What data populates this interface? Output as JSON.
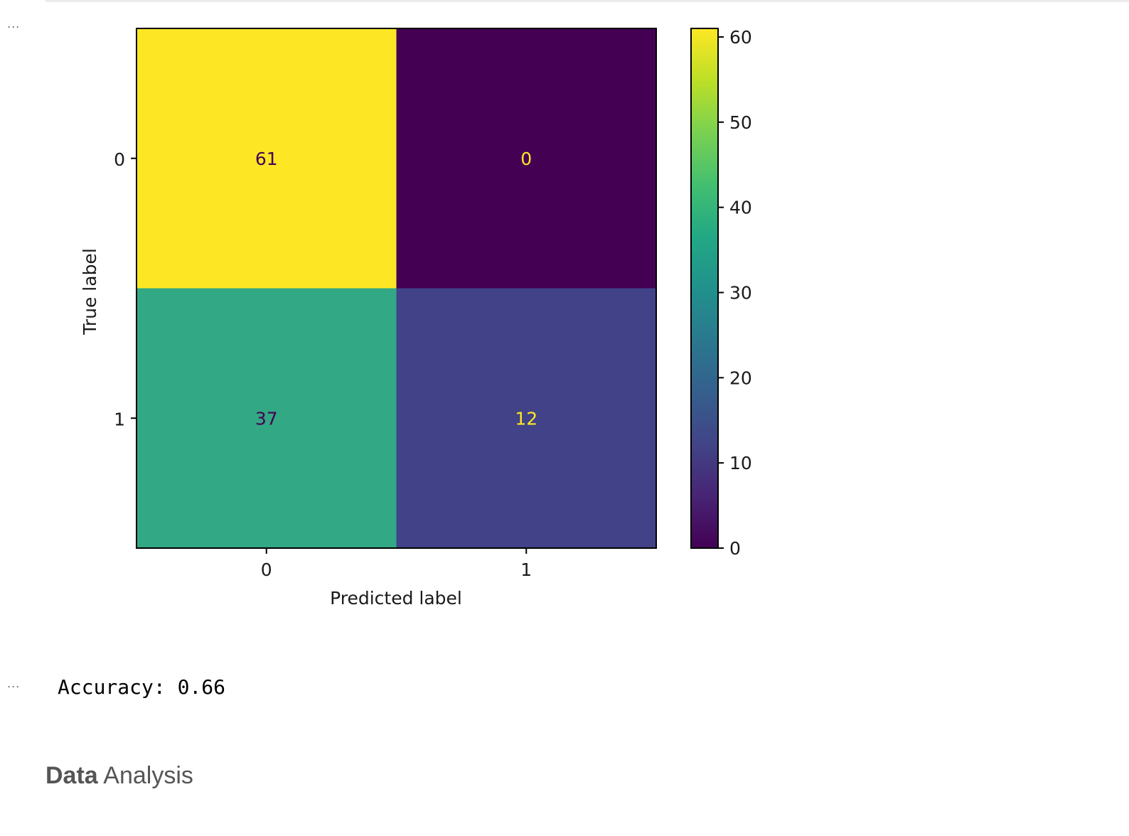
{
  "cells": [
    {
      "gutter": "..."
    },
    {
      "gutter": "..."
    }
  ],
  "chart_data": {
    "type": "heatmap",
    "title": "",
    "xlabel": "Predicted label",
    "ylabel": "True label",
    "x_categories": [
      "0",
      "1"
    ],
    "y_categories": [
      "0",
      "1"
    ],
    "values": [
      [
        61,
        0
      ],
      [
        37,
        12
      ]
    ],
    "colormap": "viridis",
    "colorbar": {
      "min": 0,
      "max": 61,
      "ticks": [
        0,
        10,
        20,
        30,
        40,
        50,
        60
      ],
      "tick_labels": [
        "0",
        "10",
        "20",
        "30",
        "40",
        "50",
        "60"
      ]
    },
    "annotations": [
      "61",
      "0",
      "37",
      "12"
    ],
    "cell_colors": [
      "#fde725",
      "#440154",
      "#33a884",
      "#414287"
    ],
    "annotation_colors": [
      "#440154",
      "#fde725",
      "#440154",
      "#fde725"
    ]
  },
  "output": {
    "text": "Accuracy: 0.66"
  },
  "markdown": {
    "heading_bold": "Data",
    "heading_rest": " Analysis"
  }
}
